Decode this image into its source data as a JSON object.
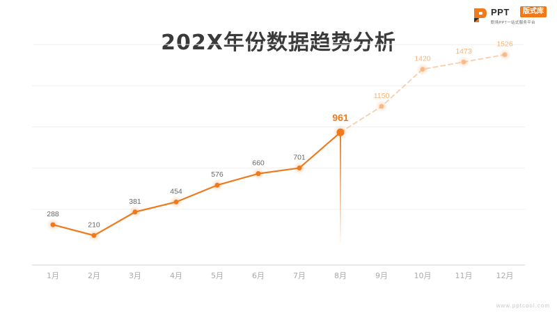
{
  "title": "202X年份数据趋势分析",
  "logo": {
    "name": "PPT",
    "badge": "版式库",
    "tagline": "职场PPT一站式服务平台"
  },
  "footer": "www.pptcool.com",
  "colors": {
    "accent": "#ee7a1f",
    "accent_light": "#f7b27a",
    "axis_label": "#aaaaaa",
    "value_label": "#666666"
  },
  "chart_data": {
    "type": "line",
    "categories": [
      "1月",
      "2月",
      "3月",
      "4月",
      "5月",
      "6月",
      "7月",
      "8月",
      "9月",
      "10月",
      "11月",
      "12月"
    ],
    "values": [
      288,
      210,
      381,
      454,
      576,
      660,
      701,
      961,
      1150,
      1420,
      1473,
      1526
    ],
    "highlight_index": 7,
    "ylim": [
      0,
      1800
    ],
    "grid": true,
    "segments": [
      {
        "style": "solid",
        "from": 0,
        "to": 7
      },
      {
        "style": "dashed",
        "from": 7,
        "to": 11
      }
    ]
  }
}
